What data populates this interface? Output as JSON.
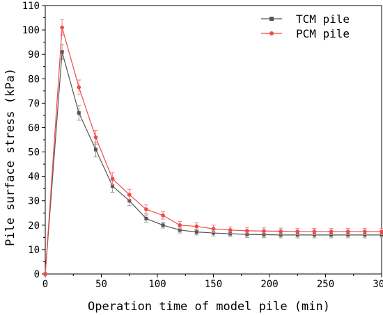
{
  "chart_data": {
    "type": "line",
    "xlabel": "Operation time of model pile (min)",
    "ylabel": "Pile surface stress (kPa)",
    "xlim": [
      0,
      300
    ],
    "ylim": [
      0,
      110
    ],
    "xticks": [
      "0",
      "50",
      "100",
      "150",
      "200",
      "250",
      "300"
    ],
    "yticks": [
      "0",
      "10",
      "20",
      "30",
      "40",
      "50",
      "60",
      "70",
      "80",
      "90",
      "100",
      "110"
    ],
    "grid": false,
    "legend_position": "top-right",
    "x": [
      0,
      15,
      30,
      45,
      60,
      75,
      90,
      105,
      120,
      135,
      150,
      165,
      180,
      195,
      210,
      225,
      240,
      255,
      270,
      285,
      300
    ],
    "series": [
      {
        "name": "TCM pile",
        "color": "#555555",
        "errorbar_color": "#999999",
        "marker": "square",
        "values": [
          0,
          91,
          66,
          51,
          36,
          30,
          22.7,
          20,
          18,
          17.2,
          16.8,
          16.5,
          16.2,
          16.1,
          16,
          16,
          16,
          16,
          16,
          16,
          16
        ],
        "errors": [
          0,
          3,
          3,
          3,
          2.5,
          2,
          1.5,
          1.2,
          1.2,
          1.2,
          1.2,
          1.2,
          1.2,
          1.2,
          1.2,
          1.2,
          1.2,
          1.2,
          1.2,
          1.2,
          1.2
        ]
      },
      {
        "name": "PCM pile",
        "color": "#f04a4a",
        "errorbar_color": "#f08080",
        "marker": "circle",
        "values": [
          0,
          101,
          76.5,
          56,
          39,
          32.5,
          26.5,
          24,
          20,
          19.5,
          18.5,
          18,
          17.7,
          17.6,
          17.5,
          17.4,
          17.4,
          17.4,
          17.4,
          17.4,
          17.4
        ],
        "errors": [
          0,
          3.2,
          3,
          2.8,
          2.5,
          2.2,
          1.8,
          1.5,
          1.5,
          1.5,
          1.5,
          1.3,
          1.3,
          1.3,
          1.3,
          1.3,
          1.3,
          1.3,
          1.3,
          1.3,
          1.3
        ]
      }
    ]
  }
}
